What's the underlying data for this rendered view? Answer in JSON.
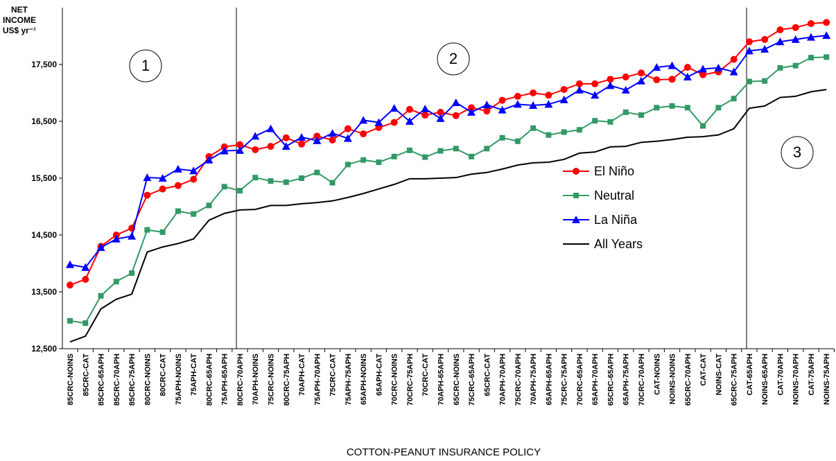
{
  "chart_data": {
    "type": "line",
    "y_label": [
      "NET",
      "INCOME",
      "US$ yr⁻¹"
    ],
    "x_label": "COTTON-PEANUT INSURANCE POLICY",
    "annotations": [
      "1",
      "2",
      "3"
    ],
    "categories": [
      "85CRC-NOINS",
      "85CRC-CAT",
      "85CRC-65APH",
      "85CRC-70APH",
      "85CRC-75APH",
      "80CRC-NOINS",
      "80CRC-CAT",
      "75APH-NOINS",
      "75APH-CAT",
      "80CRC-65APH",
      "75APH-65APH",
      "80CRC-70APH",
      "70APH-NOINS",
      "75CRC-NOINS",
      "80CRC-75APH",
      "70APH-CAT",
      "75APH-70APH",
      "75CRC-CAT",
      "75APH-75APH",
      "65APH-NOINS",
      "65APH-CAT",
      "70CRC-NOINS",
      "70CRC-75APH",
      "70CRC-CAT",
      "70APH-65APH",
      "65CRC-NOINS",
      "75CRC-65APH",
      "65CRC-CAT",
      "70APH-70APH",
      "75CRC-70APH",
      "70APH-75APH",
      "65APH-65APH",
      "75CRC-75APH",
      "70CRC-65APH",
      "65APH-70APH",
      "65CRC-65APH",
      "65APH-75APH",
      "70CRC-70APH",
      "CAT-NOINS",
      "NOINS-NOINS",
      "65CRC-70APH",
      "CAT-CAT",
      "NOINS-CAT",
      "65CRC-75APH",
      "CAT-65APH",
      "NOINS-65APH",
      "CAT-70APH",
      "NOINS-70APH",
      "CAT-75APH",
      "NOINS-75APH"
    ],
    "series": [
      {
        "name": "El Niño",
        "color": "#ff0000",
        "marker": "circle",
        "values": [
          13620,
          13720,
          14300,
          14500,
          14620,
          15200,
          15310,
          15370,
          15480,
          15880,
          16050,
          16090,
          16000,
          16060,
          16210,
          16100,
          16240,
          16170,
          16370,
          16280,
          16390,
          16480,
          16710,
          16610,
          16660,
          16600,
          16740,
          16680,
          16870,
          16940,
          17000,
          16960,
          17060,
          17160,
          17160,
          17240,
          17280,
          17350,
          17230,
          17240,
          17450,
          17320,
          17370,
          17590,
          17900,
          17940,
          18110,
          18150,
          18220,
          18240
        ]
      },
      {
        "name": "Neutral",
        "color": "#339966",
        "marker": "square",
        "values": [
          12990,
          12950,
          13430,
          13680,
          13830,
          14590,
          14550,
          14920,
          14870,
          15020,
          15350,
          15280,
          15510,
          15450,
          15430,
          15500,
          15600,
          15420,
          15740,
          15820,
          15780,
          15880,
          15990,
          15870,
          15980,
          16020,
          15880,
          16020,
          16210,
          16150,
          16380,
          16260,
          16310,
          16350,
          16510,
          16490,
          16660,
          16610,
          16740,
          16770,
          16740,
          16420,
          16740,
          16900,
          17200,
          17210,
          17440,
          17480,
          17620,
          17630
        ]
      },
      {
        "name": "La Niña",
        "color": "#0000ff",
        "marker": "triangle",
        "values": [
          13980,
          13930,
          14280,
          14430,
          14480,
          15510,
          15500,
          15660,
          15630,
          15820,
          15980,
          15990,
          16240,
          16370,
          16060,
          16220,
          16160,
          16290,
          16200,
          16520,
          16480,
          16730,
          16500,
          16720,
          16550,
          16830,
          16660,
          16790,
          16700,
          16800,
          16780,
          16800,
          16880,
          17050,
          16960,
          17130,
          17050,
          17210,
          17450,
          17480,
          17280,
          17420,
          17440,
          17370,
          17740,
          17770,
          17900,
          17940,
          17980,
          18010
        ]
      },
      {
        "name": "All Years",
        "color": "#000000",
        "marker": "none",
        "values": [
          12620,
          12720,
          13200,
          13370,
          13460,
          14200,
          14290,
          14350,
          14430,
          14760,
          14880,
          14940,
          14950,
          15020,
          15020,
          15050,
          15070,
          15100,
          15160,
          15230,
          15310,
          15390,
          15490,
          15490,
          15500,
          15510,
          15570,
          15600,
          15660,
          15730,
          15770,
          15780,
          15830,
          15940,
          15960,
          16050,
          16060,
          16130,
          16150,
          16180,
          16220,
          16230,
          16260,
          16370,
          16730,
          16770,
          16920,
          16940,
          17020,
          17060
        ]
      }
    ],
    "ylim": [
      12500,
      18500
    ],
    "yticks": [
      {
        "value": 12500,
        "label": "12,500"
      },
      {
        "value": 13500,
        "label": "13,500"
      },
      {
        "value": 14500,
        "label": "14,500"
      },
      {
        "value": 15500,
        "label": "15,500"
      },
      {
        "value": 16500,
        "label": "16,500"
      },
      {
        "value": 17500,
        "label": "17,500"
      }
    ],
    "grid": false,
    "legend": "right"
  }
}
